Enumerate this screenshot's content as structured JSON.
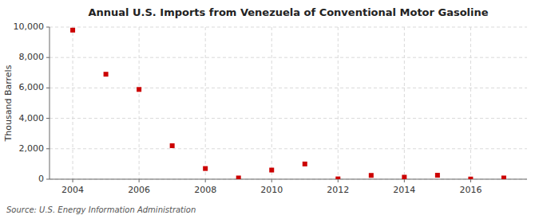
{
  "chart_data": {
    "type": "scatter",
    "title": "Annual U.S. Imports from Venezuela of Conventional Motor Gasoline",
    "ylabel": "Thousand Barrels",
    "source": "Source: U.S. Energy Information Administration",
    "x": [
      2004,
      2005,
      2006,
      2007,
      2008,
      2009,
      2010,
      2011,
      2012,
      2013,
      2014,
      2015,
      2016,
      2017
    ],
    "values": [
      9800,
      6900,
      5900,
      2200,
      700,
      80,
      600,
      1000,
      20,
      250,
      130,
      260,
      10,
      80
    ],
    "color": "#cc0000",
    "marker": "square",
    "xlim": [
      2003.3,
      2017.7
    ],
    "ylim": [
      0,
      10000
    ],
    "xticks": [
      2004,
      2006,
      2008,
      2010,
      2012,
      2014,
      2016
    ],
    "yticks": [
      0,
      {
        "value": 2000,
        "label": "2,000"
      },
      {
        "value": 4000,
        "label": "4,000"
      },
      {
        "value": 6000,
        "label": "6,000"
      },
      {
        "value": 8000,
        "label": "8,000"
      },
      {
        "value": 10000,
        "label": "10,000"
      }
    ],
    "grid": true
  }
}
